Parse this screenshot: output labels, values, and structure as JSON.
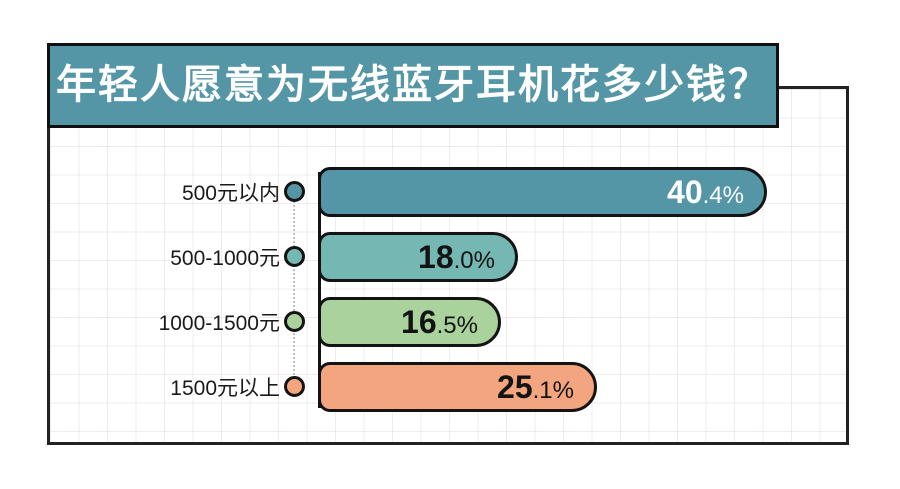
{
  "title": {
    "text": "年轻人愿意为无线蓝牙耳机花多少钱？"
  },
  "colors": {
    "banner_fill": "#5496a6",
    "outline_black": "#131313",
    "panel_border": "#222222",
    "grid_line": "#efe8e6",
    "dotted_axis": "#c2c2c2",
    "label_text": "#1a1a1a"
  },
  "chart_data": {
    "type": "bar",
    "orientation": "horizontal",
    "title": "年轻人愿意为无线蓝牙耳机花多少钱？",
    "categories": [
      "500元以内",
      "500-1000元",
      "1000-1500元",
      "1500元以上"
    ],
    "values": [
      40.4,
      18.0,
      16.5,
      25.1
    ],
    "unit": "%",
    "xlim": [
      0,
      45
    ],
    "grid": true,
    "legend": false,
    "bars": [
      {
        "category": "500元以内",
        "value": 40.4,
        "label_whole": "40",
        "label_rest": ".4%",
        "color": "#5496a6",
        "text_color": "#ffffff"
      },
      {
        "category": "500-1000元",
        "value": 18.0,
        "label_whole": "18",
        "label_rest": ".0%",
        "color": "#74b7b3",
        "text_color": "#131313"
      },
      {
        "category": "1000-1500元",
        "value": 16.5,
        "label_whole": "16",
        "label_rest": ".5%",
        "color": "#a9d29d",
        "text_color": "#131313"
      },
      {
        "category": "1500元以上",
        "value": 25.1,
        "label_whole": "25",
        "label_rest": ".1%",
        "color": "#f3a57f",
        "text_color": "#131313"
      }
    ]
  }
}
